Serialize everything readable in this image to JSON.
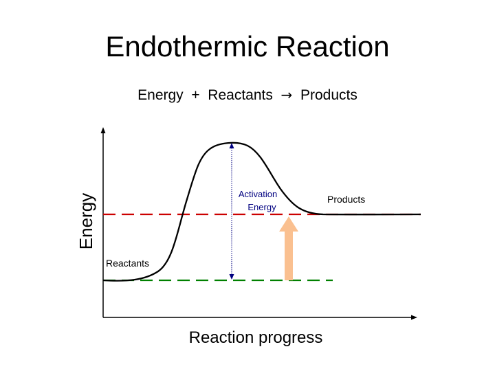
{
  "title": "Endothermic Reaction",
  "equation": {
    "left": "Energy",
    "plus": "+",
    "middle": "Reactants",
    "arrow": "→",
    "right": "Products"
  },
  "diagram": {
    "y_axis_label": "Energy",
    "x_axis_label": "Reaction progress",
    "reactants_label": "Reactants",
    "products_label": "Products",
    "activation_label_line1": "Activation",
    "activation_label_line2": "Energy",
    "colors": {
      "curve": "#000000",
      "products_line": "#cc0000",
      "reactants_line": "#008000",
      "activation_arrow": "#000080",
      "activation_text": "#000080",
      "energy_arrow": "#fac090"
    }
  }
}
